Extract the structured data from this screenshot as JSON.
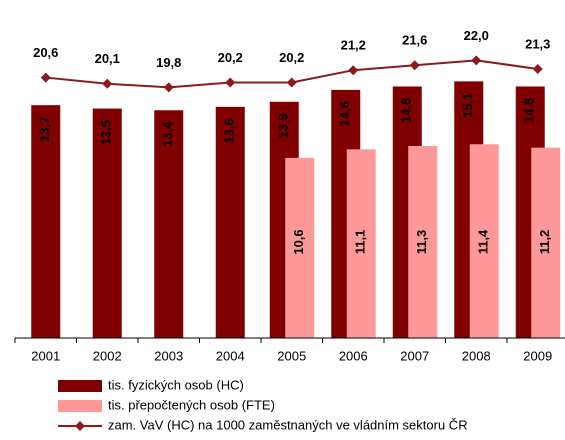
{
  "chart_data": {
    "type": "bar",
    "categories": [
      "2001",
      "2002",
      "2003",
      "2004",
      "2005",
      "2006",
      "2007",
      "2008",
      "2009"
    ],
    "ylim": [
      0,
      19.3
    ],
    "y2lim": [
      -0.6,
      26.1
    ],
    "series": [
      {
        "name": "tis. fyzických osob (HC)",
        "color": "#800000",
        "type": "bar",
        "values": [
          13.7,
          13.5,
          13.4,
          13.6,
          13.9,
          14.6,
          14.8,
          15.1,
          14.8
        ],
        "value_labels": [
          "13,7",
          "13,5",
          "13,4",
          "13,6",
          "13,9",
          "14,6",
          "14,8",
          "15,1",
          "14,8"
        ]
      },
      {
        "name": "tis. přepočtených osob (FTE)",
        "color": "#ff9999",
        "type": "bar",
        "values": [
          null,
          null,
          null,
          null,
          10.6,
          11.1,
          11.3,
          11.4,
          11.2
        ],
        "value_labels": [
          null,
          null,
          null,
          null,
          "10,6",
          "11,1",
          "11,3",
          "11,4",
          "11,2"
        ]
      },
      {
        "name": "zam. VaV (HC) na 1000 zaměstnaných ve vládním sektoru ČR",
        "color": "#8b1a1a",
        "type": "line",
        "axis": "y2",
        "values": [
          20.6,
          20.1,
          19.8,
          20.2,
          20.2,
          21.2,
          21.6,
          22.0,
          21.3
        ],
        "value_labels": [
          "20,6",
          "20,1",
          "19,8",
          "20,2",
          "20,2",
          "21,2",
          "21,6",
          "22,0",
          "21,3"
        ]
      }
    ]
  }
}
